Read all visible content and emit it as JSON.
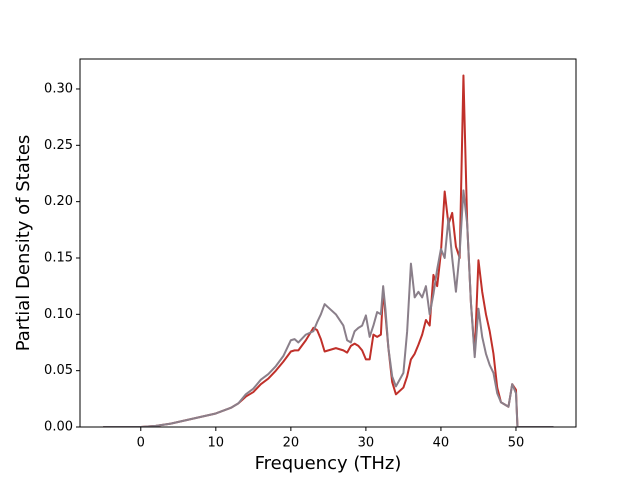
{
  "chart_data": {
    "type": "line",
    "x_label": "Frequency (THz)",
    "y_label": "Partial Density of States",
    "x": [
      -5,
      0,
      2,
      4,
      6,
      8,
      10,
      12,
      13,
      14,
      15,
      16,
      17,
      18,
      19,
      20,
      20.5,
      21,
      22,
      23,
      23.5,
      24,
      24.5,
      25,
      26,
      27,
      27.5,
      28,
      28.5,
      29,
      29.5,
      30,
      30.5,
      31,
      31.5,
      32,
      32.3,
      32.6,
      33,
      33.5,
      34,
      35,
      35.5,
      36,
      36.5,
      37,
      37.5,
      38,
      38.5,
      39,
      39.5,
      40,
      40.5,
      41,
      41.5,
      42,
      42.5,
      43,
      43.5,
      44,
      44.5,
      45,
      45.5,
      46,
      46.5,
      47,
      47.5,
      48,
      49,
      49.5,
      50,
      50.2,
      55
    ],
    "series": [
      {
        "color": "#c0302a",
        "values": [
          0,
          0,
          0.001,
          0.003,
          0.006,
          0.009,
          0.012,
          0.017,
          0.021,
          0.027,
          0.031,
          0.038,
          0.043,
          0.05,
          0.058,
          0.067,
          0.068,
          0.068,
          0.077,
          0.088,
          0.086,
          0.078,
          0.067,
          0.068,
          0.07,
          0.068,
          0.066,
          0.072,
          0.074,
          0.072,
          0.068,
          0.06,
          0.06,
          0.082,
          0.08,
          0.082,
          0.122,
          0.1,
          0.07,
          0.04,
          0.029,
          0.035,
          0.045,
          0.06,
          0.065,
          0.073,
          0.082,
          0.095,
          0.09,
          0.135,
          0.125,
          0.155,
          0.209,
          0.18,
          0.19,
          0.16,
          0.15,
          0.312,
          0.18,
          0.11,
          0.065,
          0.148,
          0.12,
          0.1,
          0.085,
          0.065,
          0.035,
          0.022,
          0.018,
          0.038,
          0.033,
          0,
          0
        ]
      },
      {
        "color": "#8a7f8a",
        "values": [
          0,
          0,
          0.001,
          0.003,
          0.006,
          0.009,
          0.012,
          0.017,
          0.021,
          0.029,
          0.034,
          0.042,
          0.047,
          0.054,
          0.063,
          0.077,
          0.078,
          0.075,
          0.082,
          0.085,
          0.093,
          0.1,
          0.109,
          0.106,
          0.1,
          0.09,
          0.077,
          0.075,
          0.085,
          0.088,
          0.09,
          0.099,
          0.08,
          0.09,
          0.102,
          0.1,
          0.125,
          0.105,
          0.07,
          0.045,
          0.036,
          0.048,
          0.085,
          0.145,
          0.115,
          0.12,
          0.115,
          0.125,
          0.1,
          0.118,
          0.14,
          0.158,
          0.15,
          0.185,
          0.15,
          0.12,
          0.155,
          0.21,
          0.18,
          0.11,
          0.062,
          0.105,
          0.08,
          0.065,
          0.055,
          0.048,
          0.03,
          0.022,
          0.018,
          0.038,
          0.03,
          0,
          0
        ]
      }
    ],
    "xlim": [
      -8.1,
      58
    ],
    "ylim": [
      0,
      0.3266
    ],
    "xticks": [
      0,
      10,
      20,
      30,
      40,
      50
    ],
    "yticks": [
      {
        "value": 0,
        "label": "0.00"
      },
      0.05,
      {
        "value": 0.1,
        "label": "0.10"
      },
      0.15,
      {
        "value": 0.2,
        "label": "0.20"
      },
      0.25,
      {
        "value": 0.3,
        "label": "0.30"
      }
    ],
    "grid": false
  }
}
